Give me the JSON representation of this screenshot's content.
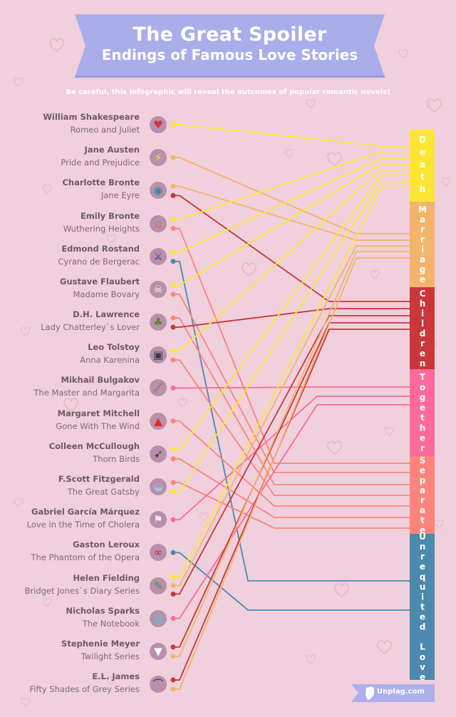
{
  "header": {
    "title": "The Great Spoiler",
    "subtitle": "Endings of Famous Love Stories",
    "warning": "Be careful, this infographic will reveal the outcomes of popular romantic novels!"
  },
  "colors": {
    "background": "#f0d0dc",
    "banner": "#a9aeea",
    "icon_circle": "#b98fab"
  },
  "categories": [
    {
      "name": "Death",
      "color": "#fbe733"
    },
    {
      "name": "Marriage",
      "color": "#f2b56b"
    },
    {
      "name": "Children",
      "color": "#c9373a"
    },
    {
      "name": "Together",
      "color": "#fd6a9b"
    },
    {
      "name": "Separate",
      "color": "#fd847b"
    },
    {
      "name": "Unrequited Love",
      "color": "#4b89ae"
    }
  ],
  "books": [
    {
      "author": "William Shakespeare",
      "title": "Romeo and Juliet",
      "icon": "heart-dagger-icon",
      "endings": [
        "Death"
      ]
    },
    {
      "author": "Jane Austen",
      "title": "Pride and Prejudice",
      "icon": "lightning-icon",
      "endings": [
        "Marriage"
      ]
    },
    {
      "author": "Charlotte Bronte",
      "title": "Jane Eyre",
      "icon": "eye-icon",
      "endings": [
        "Marriage",
        "Children"
      ]
    },
    {
      "author": "Emily Bronte",
      "title": "Wuthering Heights",
      "icon": "house-icon",
      "endings": [
        "Death",
        "Separate"
      ]
    },
    {
      "author": "Edmond Rostand",
      "title": "Cyrano de Bergerac",
      "icon": "crossed-swords-icon",
      "endings": [
        "Death",
        "Unrequited Love"
      ]
    },
    {
      "author": "Gustave Flaubert",
      "title": "Madame Bovary",
      "icon": "poison-bottle-icon",
      "endings": [
        "Death",
        "Separate"
      ]
    },
    {
      "author": "D.H. Lawrence",
      "title": "Lady Chatterley`s Lover",
      "icon": "tree-icon",
      "endings": [
        "Separate",
        "Children"
      ]
    },
    {
      "author": "Leo Tolstoy",
      "title": "Anna Karenina",
      "icon": "train-icon",
      "endings": [
        "Death",
        "Separate"
      ]
    },
    {
      "author": "Mikhail Bulgakov",
      "title": "The Master and Margarita",
      "icon": "broom-icon",
      "endings": [
        "Together"
      ]
    },
    {
      "author": "Margaret Mitchell",
      "title": "Gone With The Wind",
      "icon": "fire-icon",
      "endings": [
        "Separate"
      ]
    },
    {
      "author": "Colleen McCullough",
      "title": "Thorn Birds",
      "icon": "bird-icon",
      "endings": [
        "Death",
        "Separate"
      ]
    },
    {
      "author": "F.Scott Fitzgerald",
      "title": "The Great Gatsby",
      "icon": "car-icon",
      "endings": [
        "Separate",
        "Death"
      ]
    },
    {
      "author": "Gabriel García Márquez",
      "title": "Love in the Time of Cholera",
      "icon": "flag-icon",
      "endings": [
        "Together"
      ]
    },
    {
      "author": "Gaston Leroux",
      "title": "The Phantom of the Opera",
      "icon": "mask-icon",
      "endings": [
        "Unrequited Love"
      ]
    },
    {
      "author": "Helen Fielding",
      "title": "Bridget Jones`s Diary Series",
      "icon": "pen-icon",
      "endings": [
        "Death",
        "Marriage",
        "Children"
      ]
    },
    {
      "author": "Nicholas Sparks",
      "title": "The Notebook",
      "icon": "notebook-icon",
      "endings": [
        "Together"
      ]
    },
    {
      "author": "Stephenie Meyer",
      "title": "Twilight Series",
      "icon": "fangs-icon",
      "endings": [
        "Children",
        "Marriage"
      ]
    },
    {
      "author": "E.L. James",
      "title": "Fifty Shades of Grey Series",
      "icon": "tie-hanger-icon",
      "endings": [
        "Children",
        "Marriage"
      ]
    }
  ],
  "footer": {
    "brand": "Unplag.com",
    "icon": "shield-icon"
  }
}
